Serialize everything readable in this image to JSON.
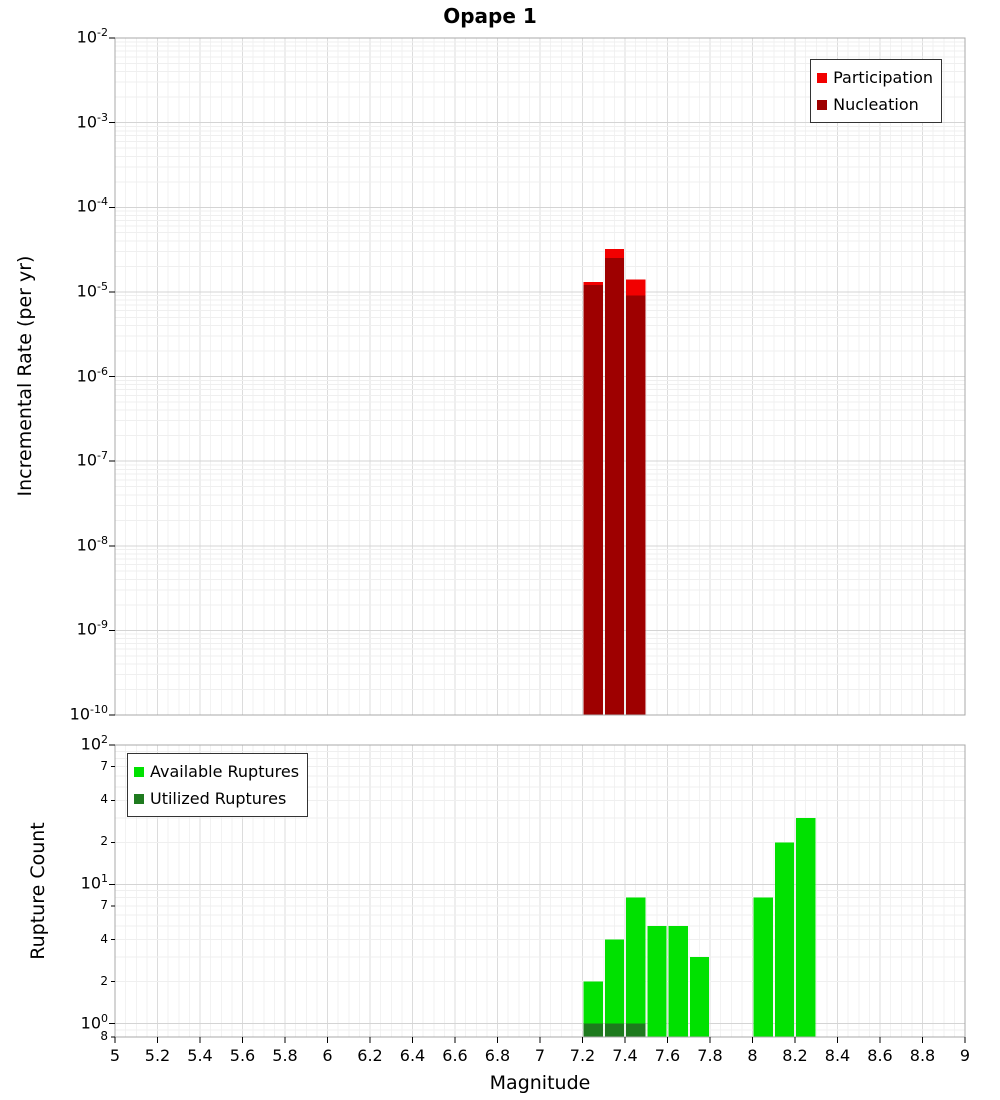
{
  "page_title": "Opape 1",
  "chart_data": [
    {
      "type": "bar",
      "panel": "incremental-rate",
      "title": "Opape 1",
      "ylabel": "Incremental Rate (per yr)",
      "yscale": "log",
      "ylim": [
        1e-10,
        0.01
      ],
      "xlim": [
        5,
        9
      ],
      "grid": true,
      "bar_width": 0.1,
      "ytick_exponents": [
        -2,
        -3,
        -4,
        -5,
        -6,
        -7,
        -8,
        -9,
        -10
      ],
      "legend_position": "top-right",
      "series": [
        {
          "name": "Participation",
          "color": "#f20000",
          "x": [
            7.25,
            7.35,
            7.45
          ],
          "values": [
            1.3e-05,
            3.2e-05,
            1.4e-05
          ]
        },
        {
          "name": "Nucleation",
          "color": "#9e0000",
          "x": [
            7.25,
            7.35,
            7.45
          ],
          "values": [
            1.2e-05,
            2.5e-05,
            9e-06
          ]
        }
      ]
    },
    {
      "type": "bar",
      "panel": "rupture-count",
      "ylabel": "Rupture Count",
      "xlabel": "Magnitude",
      "yscale": "log",
      "ylim": [
        0.8,
        100
      ],
      "xlim": [
        5,
        9
      ],
      "grid": true,
      "bar_width": 0.1,
      "ytick_major": [
        {
          "v": 100,
          "exp": 2
        },
        {
          "v": 10,
          "exp": 1
        },
        {
          "v": 1,
          "exp": 0
        }
      ],
      "ytick_minor": [
        {
          "v": 70,
          "label": "7"
        },
        {
          "v": 40,
          "label": "4"
        },
        {
          "v": 20,
          "label": "2"
        },
        {
          "v": 7,
          "label": "7"
        },
        {
          "v": 4,
          "label": "4"
        },
        {
          "v": 2,
          "label": "2"
        },
        {
          "v": 0.8,
          "label": "8"
        }
      ],
      "xtick_step": 0.2,
      "xtick_labels": [
        "5",
        "5.2",
        "5.4",
        "5.6",
        "5.8",
        "6",
        "6.2",
        "6.4",
        "6.6",
        "6.8",
        "7",
        "7.2",
        "7.4",
        "7.6",
        "7.8",
        "8",
        "8.2",
        "8.4",
        "8.6",
        "8.8",
        "9"
      ],
      "legend_position": "top-left",
      "series": [
        {
          "name": "Available Ruptures",
          "color": "#00e100",
          "x": [
            7.25,
            7.35,
            7.45,
            7.55,
            7.65,
            7.75,
            8.05,
            8.15,
            8.25
          ],
          "values": [
            2,
            4,
            8,
            5,
            5,
            3,
            8,
            20,
            30
          ]
        },
        {
          "name": "Utilized Ruptures",
          "color": "#1e7a1e",
          "x": [
            7.25,
            7.35,
            7.45
          ],
          "values": [
            1,
            1,
            1
          ]
        }
      ]
    }
  ]
}
